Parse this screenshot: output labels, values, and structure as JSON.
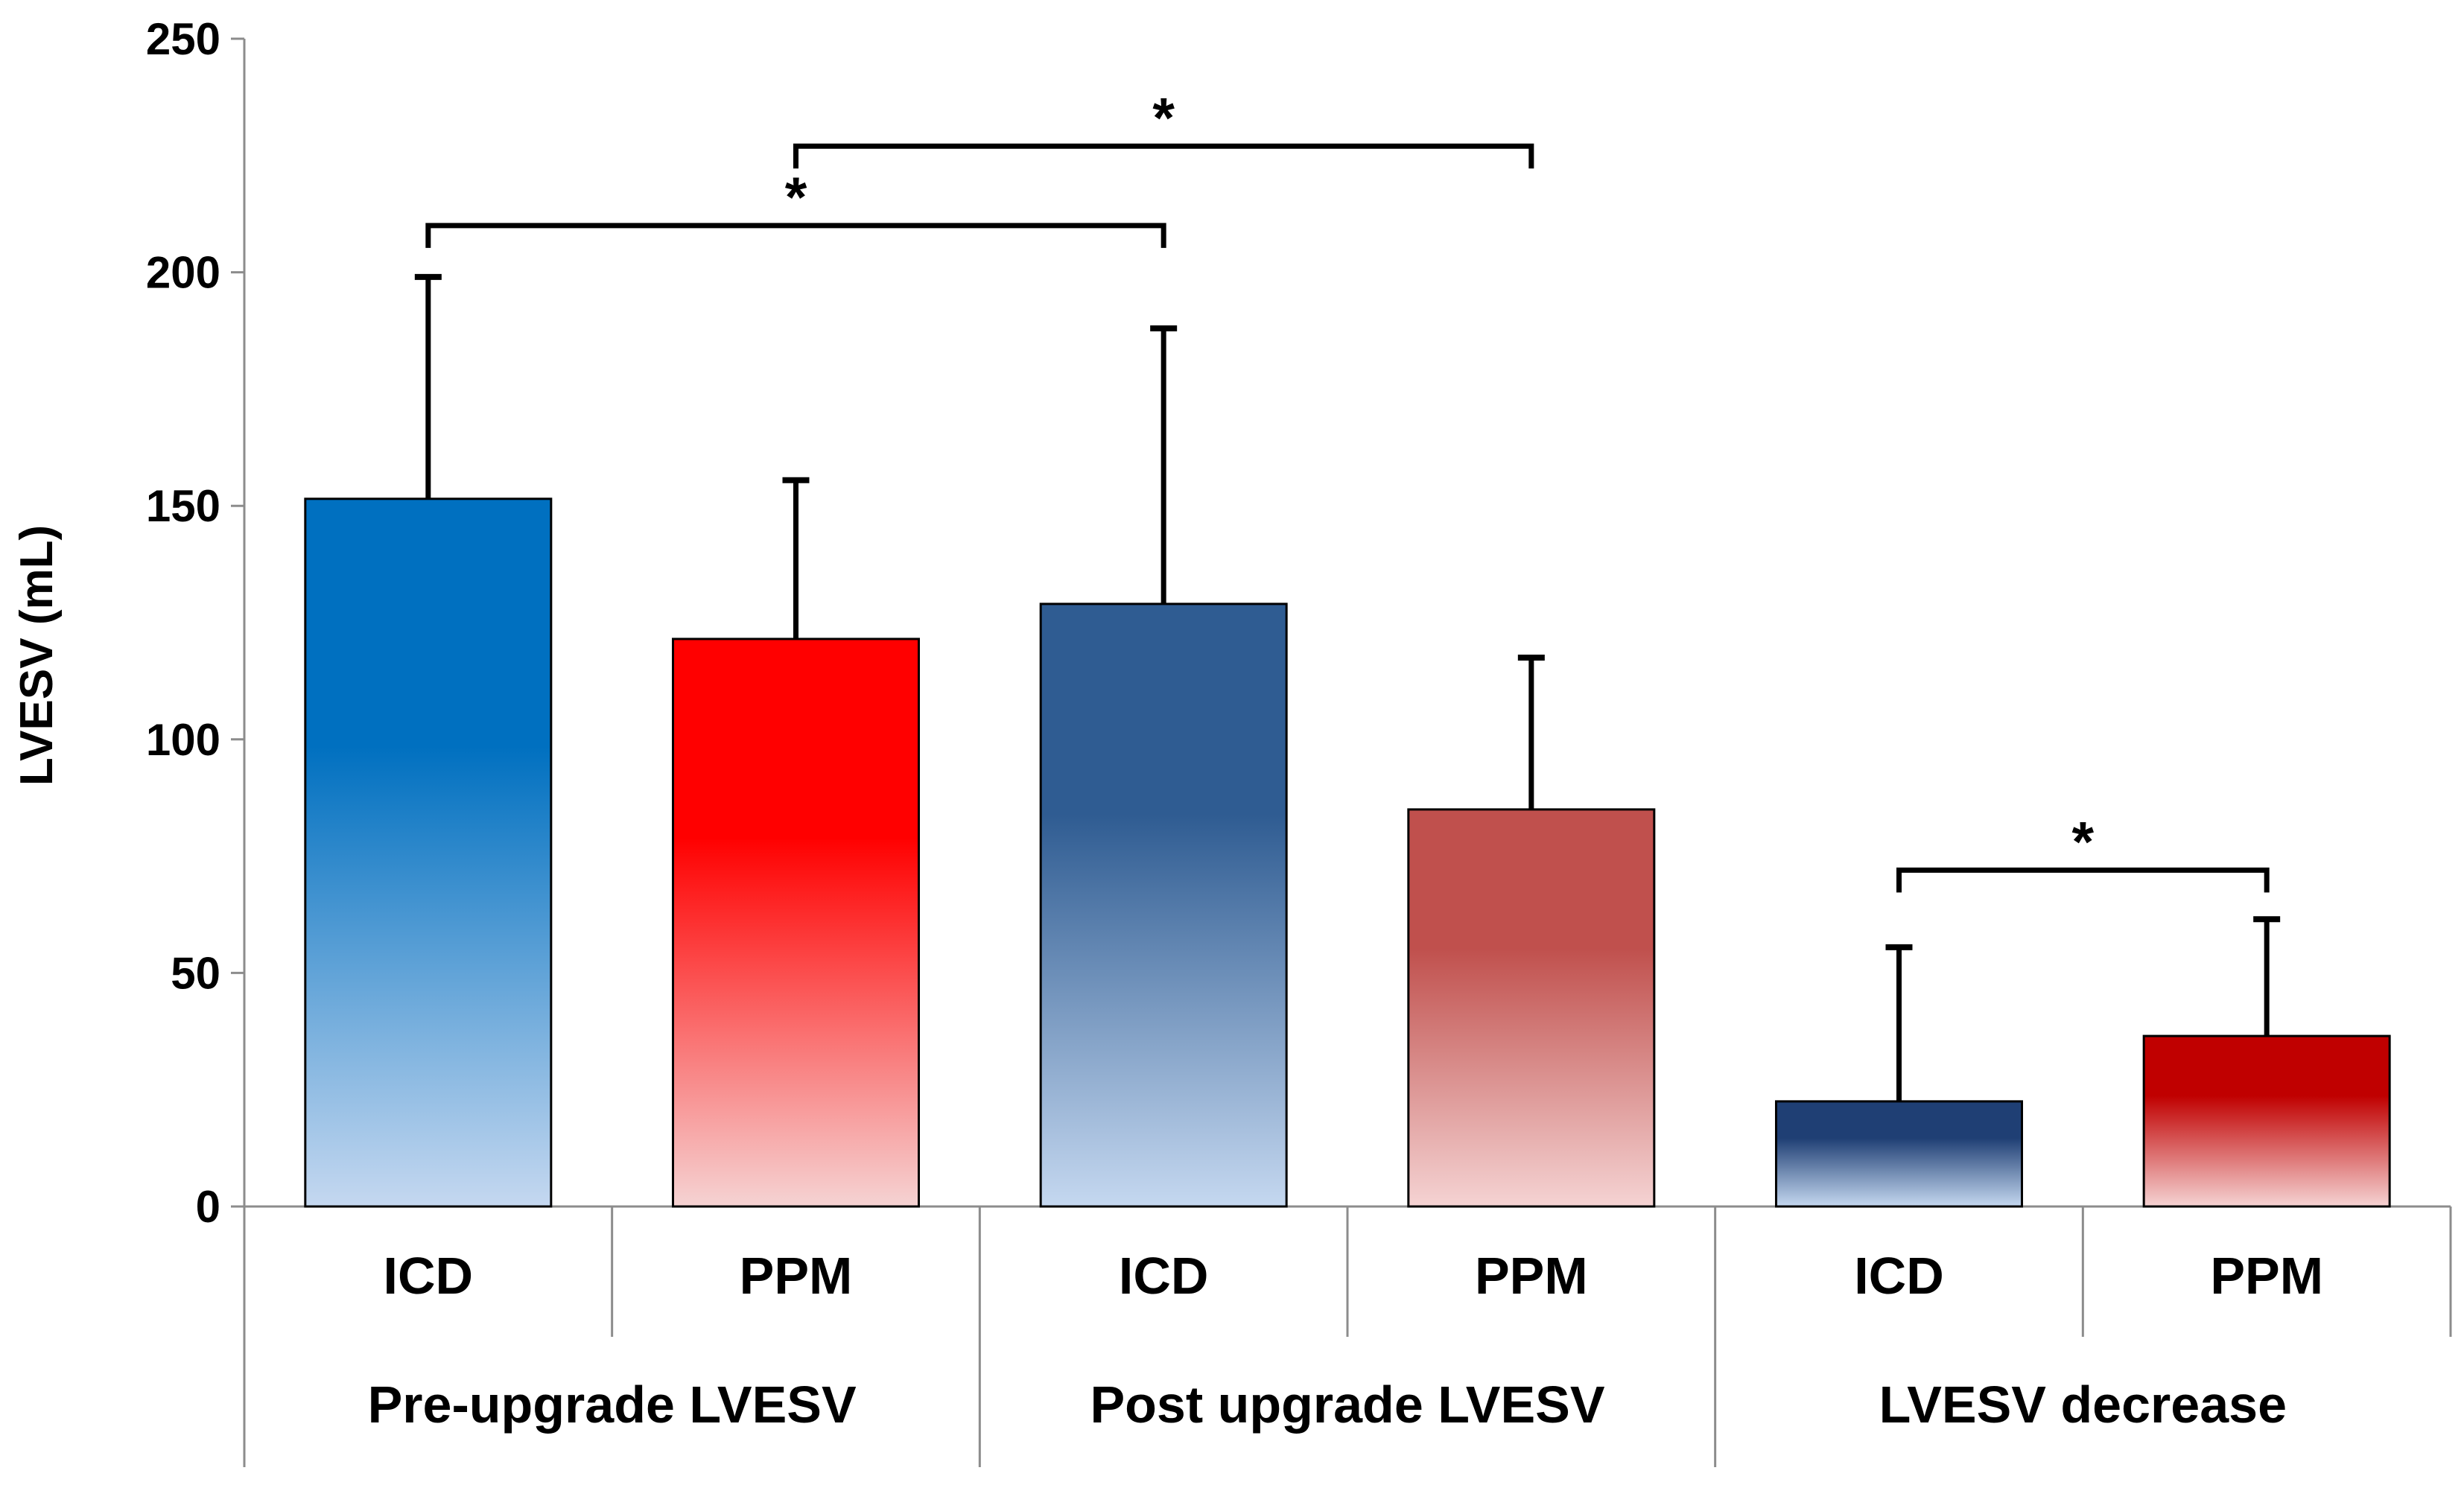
{
  "chart_data": {
    "type": "bar",
    "title": "",
    "ylabel": "LVESV (mL)",
    "xlabel": "",
    "ylim": [
      0,
      250
    ],
    "yticks": [
      0,
      50,
      100,
      150,
      200,
      250
    ],
    "grid": false,
    "groups": [
      {
        "label": "Pre-upgrade LVESV",
        "categories": [
          "ICD",
          "PPM"
        ]
      },
      {
        "label": "Post upgrade LVESV",
        "categories": [
          "ICD",
          "PPM"
        ]
      },
      {
        "label": "LVESV decrease",
        "categories": [
          "ICD",
          "PPM"
        ]
      }
    ],
    "bars": [
      {
        "group": "Pre-upgrade LVESV",
        "label": "ICD",
        "value": 151.5,
        "error": 47.5,
        "color_top": "#0070C0",
        "color_bottom": "#C5D8F0"
      },
      {
        "group": "Pre-upgrade LVESV",
        "label": "PPM",
        "value": 121.5,
        "error": 34.0,
        "color_top": "#FF0000",
        "color_bottom": "#F5D3D3"
      },
      {
        "group": "Post upgrade LVESV",
        "label": "ICD",
        "value": 129.0,
        "error": 59.0,
        "color_top": "#2F5C92",
        "color_bottom": "#C5D8F0"
      },
      {
        "group": "Post upgrade LVESV",
        "label": "PPM",
        "value": 85.0,
        "error": 32.5,
        "color_top": "#C0504D",
        "color_bottom": "#F5D3D3"
      },
      {
        "group": "LVESV decrease",
        "label": "ICD",
        "value": 22.5,
        "error": 33.0,
        "color_top": "#1F3F74",
        "color_bottom": "#C5D8F0"
      },
      {
        "group": "LVESV decrease",
        "label": "PPM",
        "value": 36.5,
        "error": 25.0,
        "color_top": "#C00000",
        "color_bottom": "#F5D3D3"
      }
    ],
    "significance": [
      {
        "from": 0,
        "to": 2,
        "y": 210,
        "label": "*"
      },
      {
        "from": 1,
        "to": 3,
        "y": 227,
        "label": "*"
      },
      {
        "from": 4,
        "to": 5,
        "y": 72,
        "label": "*"
      }
    ]
  }
}
